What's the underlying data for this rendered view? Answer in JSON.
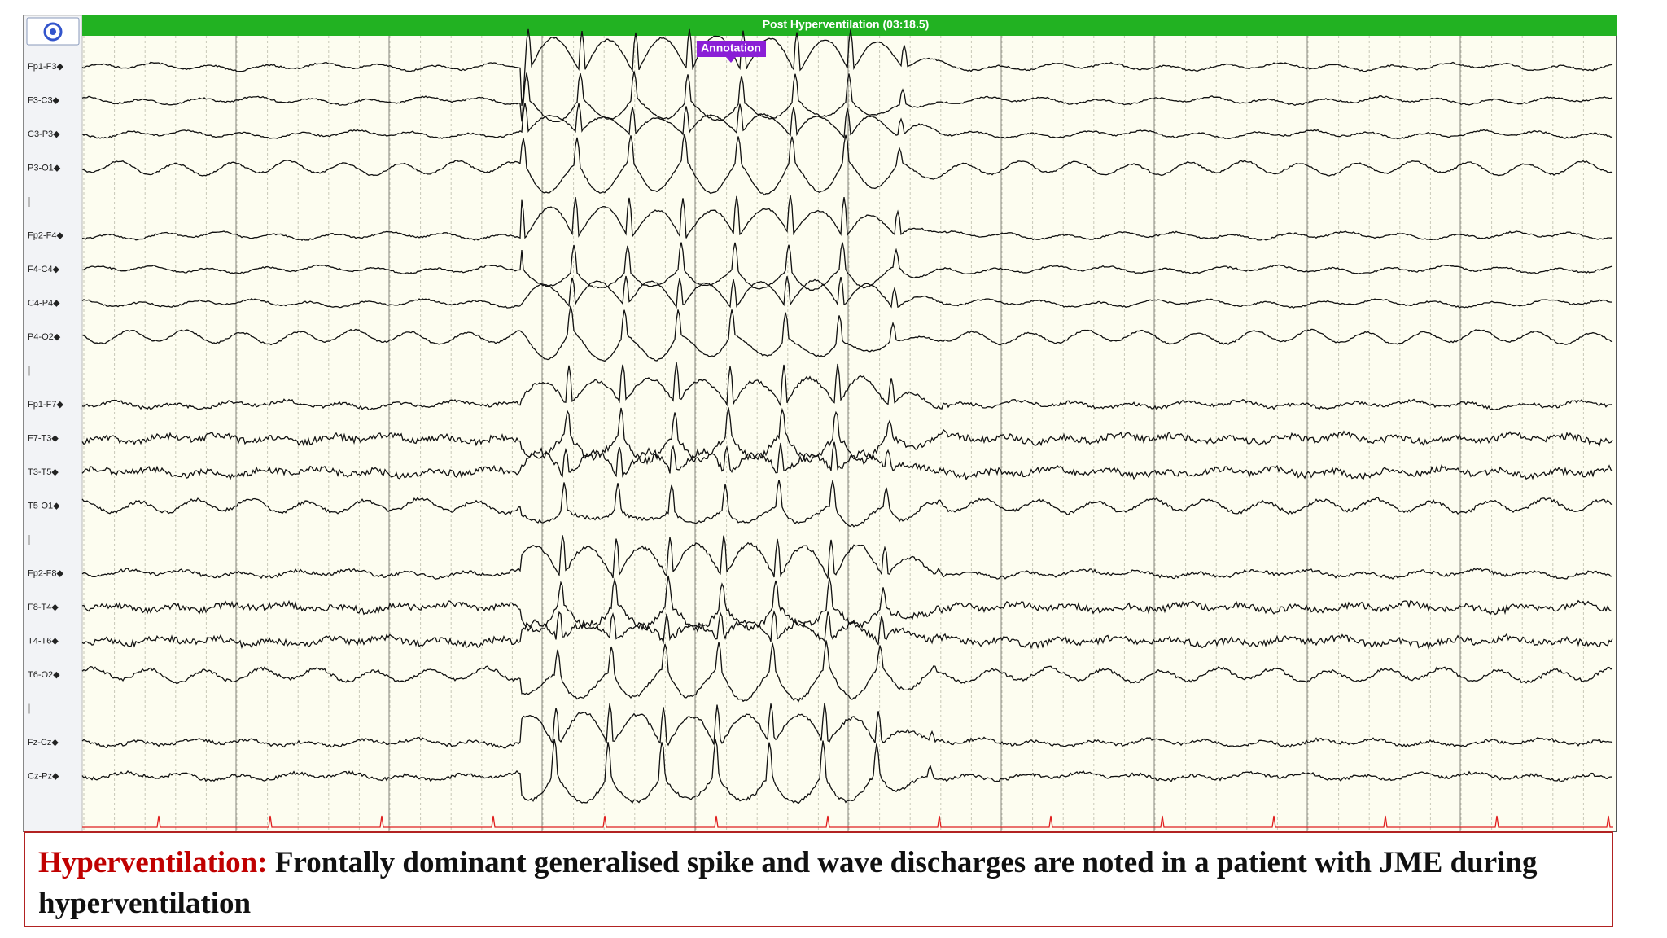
{
  "header": {
    "title": "Post Hyperventilation (03:18.5)",
    "annotation": "Annotation"
  },
  "channels": [
    {
      "label": "Fp1-F3◆"
    },
    {
      "label": "F3-C3◆"
    },
    {
      "label": "C3-P3◆"
    },
    {
      "label": "P3-O1◆"
    },
    {
      "label": "Fp2-F4◆"
    },
    {
      "label": "F4-C4◆"
    },
    {
      "label": "C4-P4◆"
    },
    {
      "label": "P4-O2◆"
    },
    {
      "label": "Fp1-F7◆"
    },
    {
      "label": "F7-T3◆"
    },
    {
      "label": "T3-T5◆"
    },
    {
      "label": "T5-O1◆"
    },
    {
      "label": "Fp2-F8◆"
    },
    {
      "label": "F8-T4◆"
    },
    {
      "label": "T4-T6◆"
    },
    {
      "label": "T6-O2◆"
    },
    {
      "label": "Fz-Cz◆"
    },
    {
      "label": "Cz-Pz◆"
    }
  ],
  "caption": {
    "label": "Hyperventilation:",
    "text": "Frontally dominant generalised spike and wave discharges are noted in a patient with JME during hyperventilation"
  }
}
